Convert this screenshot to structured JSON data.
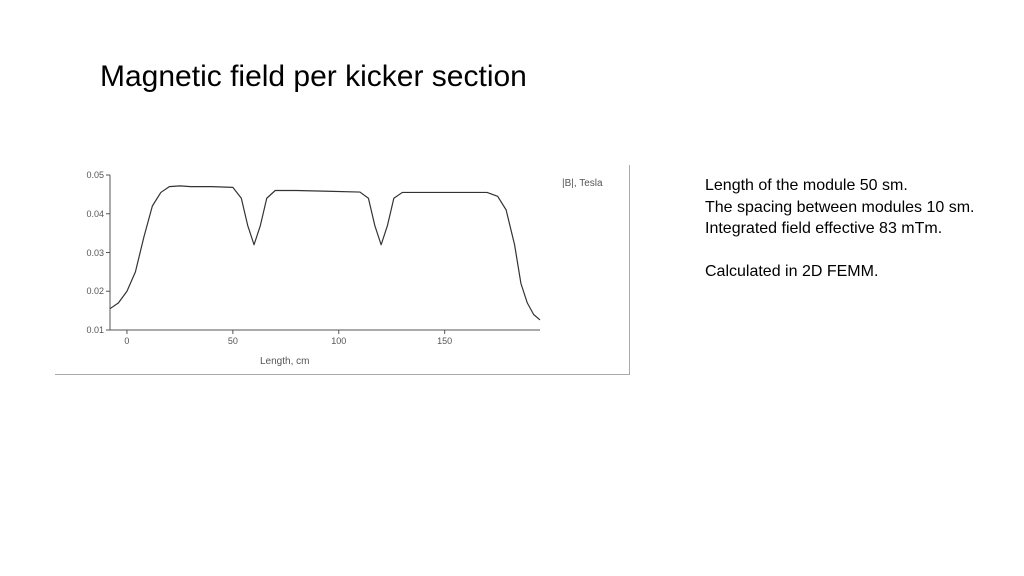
{
  "title": "Magnetic field per kicker section",
  "chart": {
    "type": "line",
    "legend_label": "|B|, Tesla",
    "xlabel": "Length, cm",
    "line_color": "#333333",
    "line_width": 1.2,
    "axis_color": "#555555",
    "tick_color": "#555555",
    "background_color": "#ffffff",
    "tick_font_size": 9,
    "label_font_size": 10,
    "xlim": [
      -8,
      195
    ],
    "ylim": [
      0.01,
      0.05
    ],
    "yticks": [
      0.01,
      0.02,
      0.03,
      0.04,
      0.05
    ],
    "xticks": [
      0,
      50,
      100,
      150
    ],
    "data_x": [
      -8,
      -4,
      0,
      4,
      8,
      12,
      16,
      20,
      25,
      30,
      40,
      50,
      54,
      57,
      60,
      63,
      66,
      70,
      80,
      95,
      110,
      114,
      117,
      120,
      123,
      126,
      130,
      140,
      160,
      170,
      175,
      179,
      183,
      186,
      189,
      192,
      195
    ],
    "data_y": [
      0.0155,
      0.017,
      0.02,
      0.025,
      0.034,
      0.042,
      0.0455,
      0.047,
      0.0472,
      0.047,
      0.047,
      0.0468,
      0.044,
      0.037,
      0.032,
      0.037,
      0.044,
      0.046,
      0.046,
      0.0458,
      0.0456,
      0.044,
      0.037,
      0.032,
      0.037,
      0.044,
      0.0455,
      0.0455,
      0.0455,
      0.0455,
      0.0445,
      0.041,
      0.032,
      0.022,
      0.017,
      0.014,
      0.0126
    ]
  },
  "sidebar": {
    "line1": "Length of the module 50 sm.",
    "line2": "The spacing between modules 10 sm.",
    "line3": "Integrated field effective 83 mTm.",
    "line4": "Calculated in 2D FEMM."
  }
}
